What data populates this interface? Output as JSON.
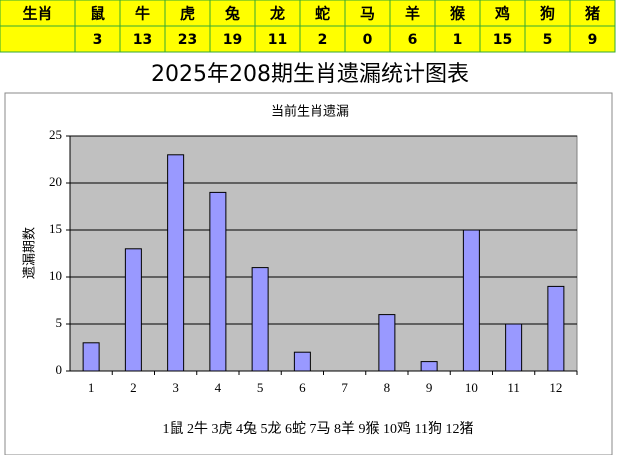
{
  "table": {
    "columns": [
      "生肖",
      "鼠",
      "牛",
      "虎",
      "兔",
      "龙",
      "蛇",
      "马",
      "羊",
      "猴",
      "鸡",
      "狗",
      "猪"
    ],
    "values": [
      3,
      13,
      23,
      19,
      11,
      2,
      0,
      6,
      1,
      15,
      5,
      9
    ]
  },
  "chart_data": {
    "type": "bar",
    "page_title": "2025年208期生肖遗漏统计图表",
    "title": "当前生肖遗漏",
    "ylabel": "遗漏期数",
    "xlabel": "1鼠 2牛 3虎 4兔 5龙 6蛇 7马 8羊 9猴 10鸡 11狗 12猪",
    "categories": [
      "1",
      "2",
      "3",
      "4",
      "5",
      "6",
      "7",
      "8",
      "9",
      "10",
      "11",
      "12"
    ],
    "values": [
      3,
      13,
      23,
      19,
      11,
      2,
      0,
      6,
      1,
      15,
      5,
      9
    ],
    "color": "#9999ff",
    "ylim": [
      0,
      25
    ],
    "yticks": [
      0,
      5,
      10,
      15,
      20,
      25
    ],
    "grid": true
  }
}
